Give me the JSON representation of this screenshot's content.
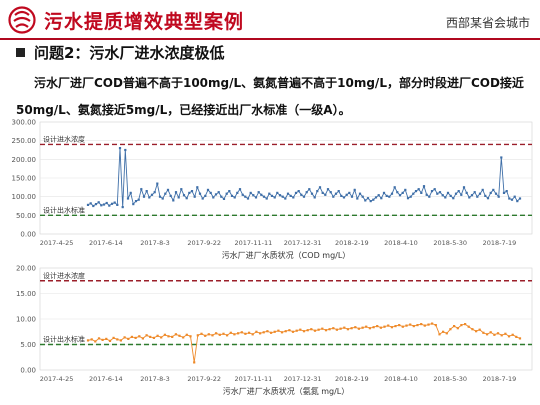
{
  "header": {
    "title": "污水提质增效典型案例",
    "region": "西部某省会城市"
  },
  "section": {
    "title": "问题2：污水厂进水浓度极低"
  },
  "description": {
    "line1": "污水厂进厂COD普遍不高于100mg/L、氨氮普遍不高于10mg/L，部分时段进厂COD接近",
    "line2": "50mg/L、氨氮接近5mg/L，已经接近出厂水标准（一级A）。"
  },
  "colors": {
    "brand_red": "#c0091f",
    "cod_series": "#3f6fa8",
    "nh3_series": "#ee8a2a",
    "design_inflow_line": "#9b1f2a",
    "design_outflow_line": "#2d7a2d"
  },
  "chart_data": [
    {
      "type": "line",
      "title": "污水厂进厂水质状况（COD mg/L）",
      "xlabel": "",
      "ylabel": "",
      "x_tick_labels": [
        "2017-4-25",
        "2017-6-14",
        "2017-8-3",
        "2017-9-22",
        "2017-11-11",
        "2017-12-31",
        "2018-2-19",
        "2018-4-10",
        "2018-5-30",
        "2018-7-19"
      ],
      "y_tick_labels": [
        "0.00",
        "50.00",
        "100.00",
        "150.00",
        "200.00",
        "250.00",
        "300.00"
      ],
      "ylim": [
        0,
        300
      ],
      "x_range": [
        "2017-4-25",
        "2018-7-30"
      ],
      "reference_lines": [
        {
          "label": "设计进水浓度",
          "value": 240
        },
        {
          "label": "设计出水标准",
          "value": 50
        }
      ],
      "series": [
        {
          "values": [
            78,
            82,
            75,
            80,
            85,
            77,
            79,
            83,
            76,
            81,
            84,
            78,
            230,
            72,
            225,
            95,
            110,
            80,
            88,
            92,
            120,
            100,
            115,
            98,
            105,
            112,
            135,
            100,
            95,
            108,
            118,
            102,
            90,
            112,
            98,
            120,
            104,
            96,
            110,
            115,
            100,
            125,
            108,
            95,
            102,
            118,
            110,
            98,
            106,
            112,
            100,
            94,
            108,
            115,
            102,
            98,
            110,
            120,
            105,
            100,
            95,
            110,
            104,
            98,
            112,
            105,
            100,
            95,
            108,
            102,
            98,
            110,
            104,
            100,
            95,
            108,
            102,
            98,
            110,
            115,
            105,
            100,
            112,
            120,
            108,
            98,
            115,
            125,
            110,
            105,
            120,
            112,
            100,
            108,
            115,
            102,
            98,
            105,
            110,
            100,
            118,
            95,
            108,
            100,
            90,
            96,
            88,
            92,
            98,
            104,
            96,
            110,
            102,
            100,
            108,
            125,
            112,
            104,
            110,
            118,
            96,
            100,
            108,
            115,
            120,
            110,
            128,
            105,
            100,
            115,
            120,
            108,
            112,
            104,
            98,
            110,
            102,
            96,
            108,
            115,
            105,
            125,
            110,
            98,
            104,
            112,
            100,
            108,
            118,
            102,
            96,
            110,
            118,
            108,
            100,
            205,
            110,
            115,
            95,
            92,
            100,
            88,
            95
          ]
        }
      ]
    },
    {
      "type": "line",
      "title": "污水厂进厂水质状况（氨氮 mg/L）",
      "xlabel": "",
      "ylabel": "",
      "x_tick_labels": [
        "2017-4-25",
        "2017-6-14",
        "2017-8-3",
        "2017-9-22",
        "2017-11-11",
        "2017-12-31",
        "2018-2-19",
        "2018-4-10",
        "2018-5-30",
        "2018-7-19"
      ],
      "y_tick_labels": [
        "0.00",
        "5.00",
        "10.00",
        "15.00",
        "20.00"
      ],
      "ylim": [
        0,
        20
      ],
      "x_range": [
        "2017-4-25",
        "2018-7-30"
      ],
      "reference_lines": [
        {
          "label": "设计进水浓度",
          "value": 17.5
        },
        {
          "label": "设计出水标准",
          "value": 5
        }
      ],
      "series": [
        {
          "values": [
            5.8,
            6.0,
            5.6,
            6.2,
            5.9,
            6.1,
            5.7,
            6.3,
            6.0,
            5.8,
            6.4,
            6.1,
            6.5,
            6.3,
            6.6,
            6.2,
            6.8,
            6.5,
            6.3,
            6.7,
            6.4,
            6.9,
            6.6,
            6.5,
            7.0,
            6.7,
            6.4,
            6.9,
            6.6,
            1.5,
            6.8,
            7.1,
            6.7,
            7.0,
            6.8,
            7.2,
            6.9,
            7.1,
            6.8,
            7.3,
            7.0,
            7.2,
            7.4,
            7.1,
            7.3,
            7.0,
            7.5,
            7.2,
            7.4,
            7.6,
            7.3,
            7.5,
            7.7,
            7.4,
            7.6,
            7.8,
            7.5,
            7.7,
            7.9,
            7.6,
            7.8,
            8.0,
            7.7,
            7.9,
            8.1,
            7.8,
            8.0,
            8.2,
            7.9,
            8.1,
            8.3,
            8.0,
            8.2,
            8.4,
            8.1,
            8.3,
            8.5,
            8.2,
            8.4,
            8.6,
            8.3,
            8.5,
            8.7,
            8.4,
            8.6,
            8.8,
            8.5,
            8.7,
            8.9,
            8.6,
            8.8,
            9.0,
            8.7,
            8.9,
            9.1,
            8.8,
            7.0,
            7.5,
            7.2,
            8.0,
            8.6,
            8.2,
            8.8,
            9.0,
            8.5,
            8.0,
            7.6,
            7.9,
            7.3,
            7.0,
            7.4,
            6.9,
            7.2,
            6.8,
            7.1,
            6.6,
            6.9,
            6.5,
            6.2
          ]
        }
      ]
    }
  ]
}
